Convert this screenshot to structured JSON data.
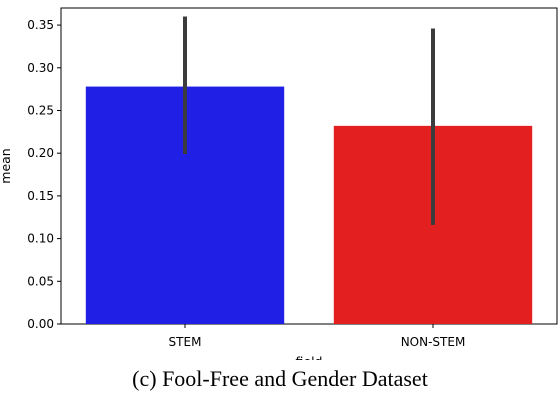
{
  "chart_data": {
    "type": "bar",
    "categories": [
      "STEM",
      "NON-STEM"
    ],
    "values": [
      0.278,
      0.232
    ],
    "error_bars": [
      [
        0.199,
        0.36
      ],
      [
        0.116,
        0.346
      ]
    ],
    "colors": [
      "#1f1fe6",
      "#e31f1f"
    ],
    "xlabel": "field",
    "ylabel": "mean",
    "ylim": [
      0,
      0.37
    ],
    "yticks": [
      "0.00",
      "0.05",
      "0.10",
      "0.15",
      "0.20",
      "0.25",
      "0.30",
      "0.35"
    ],
    "grid": false
  },
  "caption": "(c) Fool-Free and Gender Dataset"
}
